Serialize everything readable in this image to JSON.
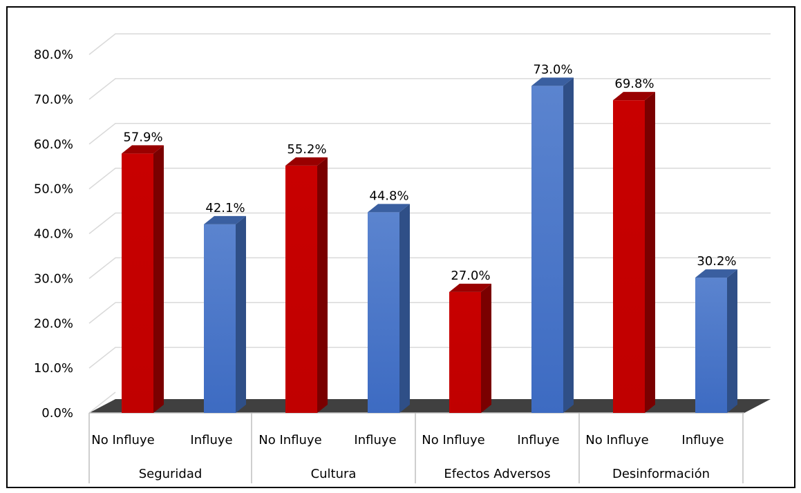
{
  "chart_data": {
    "type": "bar",
    "style": "3d-clustered-column",
    "groups": [
      "Seguridad",
      "Cultura",
      "Efectos Adversos",
      "Desinformación"
    ],
    "categories": [
      "No Influye",
      "Influye",
      "No Influye",
      "Influye",
      "No Influye",
      "Influye",
      "No Influye",
      "Influye"
    ],
    "values": [
      57.9,
      42.1,
      55.2,
      44.8,
      27.0,
      73.0,
      69.8,
      30.2
    ],
    "data_labels": [
      "57.9%",
      "42.1%",
      "55.2%",
      "44.8%",
      "27.0%",
      "73.0%",
      "69.8%",
      "30.2%"
    ],
    "y_ticks": [
      "0.0%",
      "10.0%",
      "20.0%",
      "30.0%",
      "40.0%",
      "50.0%",
      "60.0%",
      "70.0%",
      "80.0%"
    ],
    "ylim": [
      0,
      80
    ],
    "title": "",
    "xlabel": "",
    "ylabel": "",
    "grid": true,
    "legend": "none",
    "colors": {
      "no_influye": "#c00000",
      "no_influye_side": "#7a0000",
      "no_influye_top": "#990000",
      "influye": "#4472c4",
      "influye_side": "#2f4f87",
      "influye_top": "#3a5fa0",
      "gridline": "#d9d9d9"
    }
  }
}
